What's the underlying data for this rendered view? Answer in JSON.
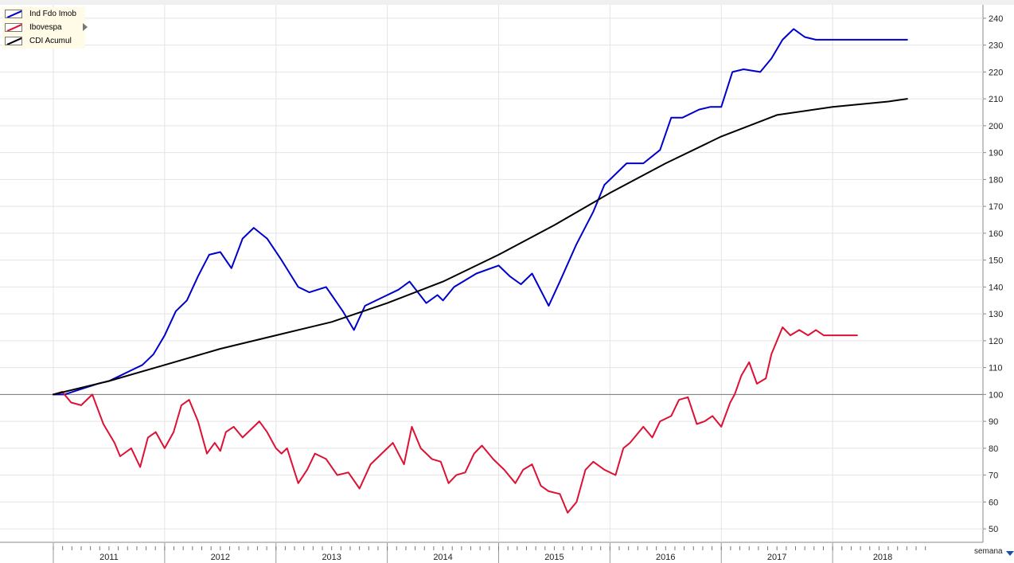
{
  "chart_data": {
    "type": "line",
    "title": "",
    "xlabel": "",
    "ylabel": "",
    "x_unit_label": "semana",
    "x_tick_labels": [
      "2011",
      "2012",
      "2013",
      "2014",
      "2015",
      "2016",
      "2017",
      "2018"
    ],
    "xlim": [
      2010.5,
      2018.4
    ],
    "ylim": [
      45,
      245
    ],
    "y_ticks": [
      50,
      60,
      70,
      80,
      90,
      100,
      110,
      120,
      130,
      140,
      150,
      160,
      170,
      180,
      190,
      200,
      210,
      220,
      230,
      240
    ],
    "reference_line": 100,
    "grid": true,
    "legend_position": "top-left",
    "series": [
      {
        "name": "Ind Fdo Imob",
        "color": "#0000cc",
        "x": [
          2010.5,
          2010.6,
          2010.75,
          2010.9,
          2011.0,
          2011.1,
          2011.2,
          2011.3,
          2011.4,
          2011.5,
          2011.6,
          2011.7,
          2011.8,
          2011.9,
          2012.0,
          2012.1,
          2012.2,
          2012.3,
          2012.42,
          2012.55,
          2012.7,
          2012.8,
          2012.95,
          2013.0,
          2013.1,
          2013.2,
          2013.3,
          2013.45,
          2013.6,
          2013.7,
          2013.85,
          2013.95,
          2014.0,
          2014.1,
          2014.3,
          2014.5,
          2014.6,
          2014.7,
          2014.8,
          2014.95,
          2015.05,
          2015.2,
          2015.35,
          2015.45,
          2015.55,
          2015.65,
          2015.8,
          2015.95,
          2016.05,
          2016.15,
          2016.3,
          2016.4,
          2016.5,
          2016.6,
          2016.7,
          2016.85,
          2016.95,
          2017.05,
          2017.15,
          2017.25,
          2017.35,
          2017.45,
          2017.55,
          2017.65,
          2017.75,
          2017.85,
          2017.95,
          2018.0,
          2018.1,
          2018.17
        ],
        "values": [
          100,
          100,
          102,
          104,
          105,
          107,
          109,
          111,
          115,
          122,
          131,
          135,
          144,
          152,
          153,
          147,
          158,
          162,
          158,
          150,
          140,
          138,
          140,
          137,
          131,
          124,
          133,
          136,
          139,
          142,
          134,
          137,
          135,
          140,
          145,
          148,
          144,
          141,
          145,
          133,
          142,
          156,
          168,
          178,
          182,
          186,
          186,
          191,
          203,
          203,
          206,
          207,
          207,
          220,
          221,
          220,
          225,
          232,
          236,
          233,
          232,
          232,
          232,
          232,
          232,
          232,
          232,
          232,
          232,
          232
        ]
      },
      {
        "name": "Ibovespa",
        "color": "#dd1133",
        "x": [
          2010.5,
          2010.58,
          2010.66,
          2010.75,
          2010.85,
          2010.95,
          2011.05,
          2011.1,
          2011.2,
          2011.28,
          2011.35,
          2011.42,
          2011.5,
          2011.58,
          2011.65,
          2011.72,
          2011.8,
          2011.88,
          2011.95,
          2012.0,
          2012.05,
          2012.12,
          2012.2,
          2012.3,
          2012.35,
          2012.42,
          2012.5,
          2012.55,
          2012.6,
          2012.7,
          2012.78,
          2012.85,
          2012.95,
          2013.05,
          2013.15,
          2013.25,
          2013.35,
          2013.45,
          2013.55,
          2013.65,
          2013.72,
          2013.8,
          2013.9,
          2013.98,
          2014.05,
          2014.12,
          2014.2,
          2014.28,
          2014.35,
          2014.45,
          2014.55,
          2014.65,
          2014.72,
          2014.8,
          2014.88,
          2014.95,
          2015.05,
          2015.12,
          2015.2,
          2015.28,
          2015.35,
          2015.45,
          2015.55,
          2015.62,
          2015.68,
          2015.72,
          2015.8,
          2015.88,
          2015.95,
          2016.05,
          2016.12,
          2016.2,
          2016.28,
          2016.35,
          2016.42,
          2016.5,
          2016.58,
          2016.62,
          2016.68,
          2016.75,
          2016.82,
          2016.9,
          2016.95,
          2017.0,
          2017.05,
          2017.12,
          2017.2,
          2017.28,
          2017.35,
          2017.42,
          2017.5,
          2017.55,
          2017.6,
          2017.68,
          2017.72
        ],
        "values": [
          100,
          101,
          97,
          96,
          100,
          89,
          82,
          77,
          80,
          73,
          84,
          86,
          80,
          86,
          96,
          98,
          90,
          78,
          82,
          79,
          86,
          88,
          84,
          88,
          90,
          86,
          80,
          78,
          80,
          67,
          72,
          78,
          76,
          70,
          71,
          65,
          74,
          78,
          82,
          74,
          88,
          80,
          76,
          75,
          67,
          70,
          71,
          78,
          81,
          76,
          72,
          67,
          72,
          74,
          66,
          64,
          63,
          56,
          60,
          72,
          75,
          72,
          70,
          80,
          82,
          84,
          88,
          84,
          90,
          92,
          98,
          99,
          89,
          90,
          92,
          88,
          97,
          100,
          107,
          112,
          104,
          106,
          115,
          120,
          125,
          122,
          124,
          122,
          124,
          122,
          122,
          122,
          122,
          122,
          122
        ]
      },
      {
        "name": "CDI Acumul",
        "color": "#000000",
        "x": [
          2010.5,
          2011.0,
          2011.5,
          2012.0,
          2012.5,
          2013.0,
          2013.5,
          2014.0,
          2014.5,
          2015.0,
          2015.5,
          2016.0,
          2016.5,
          2017.0,
          2017.5,
          2018.0,
          2018.17
        ],
        "values": [
          100,
          105,
          111,
          117,
          122,
          127,
          134,
          142,
          152,
          163,
          175,
          186,
          196,
          204,
          207,
          209,
          210
        ]
      }
    ]
  }
}
